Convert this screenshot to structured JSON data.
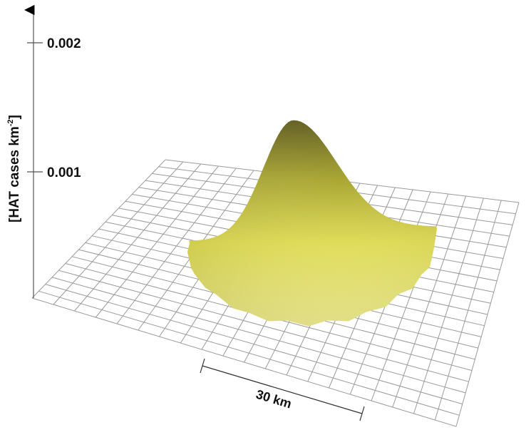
{
  "chart_data": {
    "type": "surface",
    "title": "",
    "zlabel_base": "[HAT cases km",
    "zlabel_sup": "-2",
    "zlabel_end": "]",
    "z_ticks": [
      {
        "value": 0.001,
        "label": "0.001"
      },
      {
        "value": 0.002,
        "label": "0.002"
      }
    ],
    "peak_value": 0.0014,
    "scale_bar_label": "30 km",
    "grid": true,
    "surface_color": "#e6e24a"
  }
}
